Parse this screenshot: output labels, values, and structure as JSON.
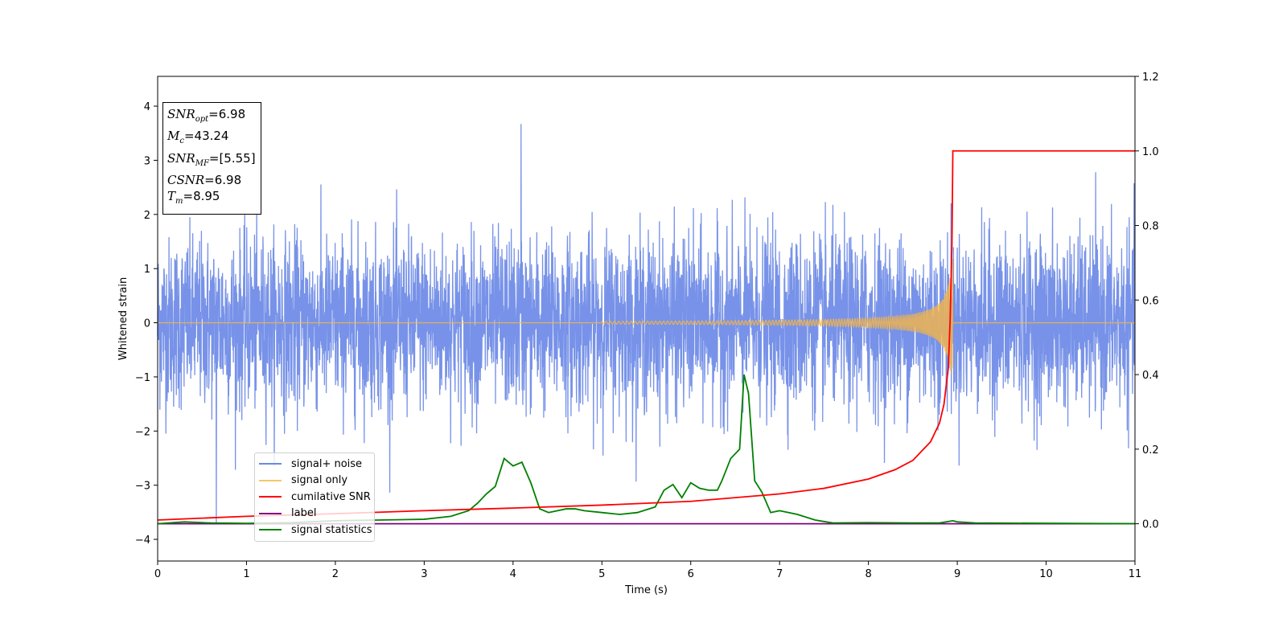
{
  "chart_data": {
    "type": "line",
    "xlabel": "Time (s)",
    "ylabel": "Whitened strain",
    "xlim": [
      0,
      11
    ],
    "ylim": [
      -4.4,
      4.55
    ],
    "y2lim": [
      -0.1,
      1.2
    ],
    "x_ticks": [
      0,
      1,
      2,
      3,
      4,
      5,
      6,
      7,
      8,
      9,
      10,
      11
    ],
    "y_ticks": [
      4,
      3,
      2,
      1,
      0,
      -1,
      -2,
      -3,
      -4
    ],
    "y2_ticks": [
      1.2,
      1.0,
      0.8,
      0.6,
      0.4,
      0.2,
      0.0
    ],
    "grid": false,
    "legend_position": "lower-left",
    "colors": {
      "signal_noise": "#6b89e6",
      "signal_only": "#f5b546",
      "cumulative_snr": "#ff0000",
      "label": "#800080",
      "signal_statistics": "#008000"
    },
    "series": [
      {
        "name": "signal+ noise",
        "axis": "left",
        "description_values": {
          "typical_range": [
            -2.2,
            2.2
          ],
          "max": 3.67,
          "max_at": 4.09,
          "min": -3.7,
          "min_at": 0.66
        }
      },
      {
        "name": "signal only",
        "axis": "left",
        "chirp": {
          "start": 5.0,
          "merger": 8.95,
          "peak_amplitude": 1.3
        }
      },
      {
        "name": "cumilative SNR",
        "axis": "right",
        "x": [
          0,
          1,
          2,
          3,
          4,
          5,
          6,
          7,
          7.5,
          8,
          8.3,
          8.5,
          8.7,
          8.8,
          8.85,
          8.9,
          8.92,
          8.94,
          8.95,
          9.0,
          11
        ],
        "y": [
          0.01,
          0.02,
          0.027,
          0.035,
          0.042,
          0.05,
          0.06,
          0.08,
          0.095,
          0.12,
          0.145,
          0.17,
          0.22,
          0.27,
          0.32,
          0.42,
          0.55,
          0.75,
          1.0,
          1.0,
          1.0
        ]
      },
      {
        "name": "label",
        "axis": "right",
        "x": [
          0,
          11
        ],
        "y": [
          0,
          0
        ]
      },
      {
        "name": "signal statistics",
        "axis": "right",
        "x": [
          0,
          0.3,
          0.6,
          1.0,
          1.5,
          2.0,
          2.5,
          3.0,
          3.3,
          3.5,
          3.6,
          3.7,
          3.8,
          3.9,
          4.0,
          4.1,
          4.2,
          4.3,
          4.4,
          4.5,
          4.6,
          4.7,
          4.8,
          5.0,
          5.2,
          5.4,
          5.6,
          5.7,
          5.8,
          5.9,
          6.0,
          6.1,
          6.2,
          6.3,
          6.35,
          6.45,
          6.55,
          6.6,
          6.65,
          6.72,
          6.8,
          6.9,
          7.0,
          7.2,
          7.4,
          7.6,
          8.0,
          8.5,
          8.8,
          8.95,
          9.0,
          9.2,
          11
        ],
        "y": [
          0.0,
          0.005,
          0.002,
          0.001,
          0.003,
          0.008,
          0.01,
          0.012,
          0.02,
          0.035,
          0.055,
          0.08,
          0.1,
          0.175,
          0.155,
          0.165,
          0.11,
          0.04,
          0.03,
          0.035,
          0.04,
          0.04,
          0.035,
          0.03,
          0.025,
          0.03,
          0.045,
          0.09,
          0.105,
          0.07,
          0.11,
          0.095,
          0.09,
          0.09,
          0.115,
          0.175,
          0.2,
          0.4,
          0.35,
          0.115,
          0.085,
          0.03,
          0.035,
          0.025,
          0.01,
          0.002,
          0.003,
          0.002,
          0.002,
          0.008,
          0.005,
          0.002,
          0.0
        ]
      }
    ]
  },
  "info_box": {
    "snr_opt_label": "SNR",
    "snr_opt_sub": "opt",
    "snr_opt_value": "=6.98",
    "mc_label": "M",
    "mc_sub": "c",
    "mc_value": "=43.24",
    "snr_mf_label": "SNR",
    "snr_mf_sub": "MF",
    "snr_mf_value": "=[5.55]",
    "csnr_label": "CSNR",
    "csnr_value": "=6.98",
    "tm_label": "T",
    "tm_sub": "m",
    "tm_value": "=8.95"
  },
  "legend": {
    "items": [
      {
        "label": "signal+ noise",
        "color": "#6b89e6"
      },
      {
        "label": "signal only",
        "color": "#f5b546"
      },
      {
        "label": "cumilative SNR",
        "color": "#ff0000"
      },
      {
        "label": "label",
        "color": "#800080"
      },
      {
        "label": "signal statistics",
        "color": "#008000"
      }
    ]
  }
}
